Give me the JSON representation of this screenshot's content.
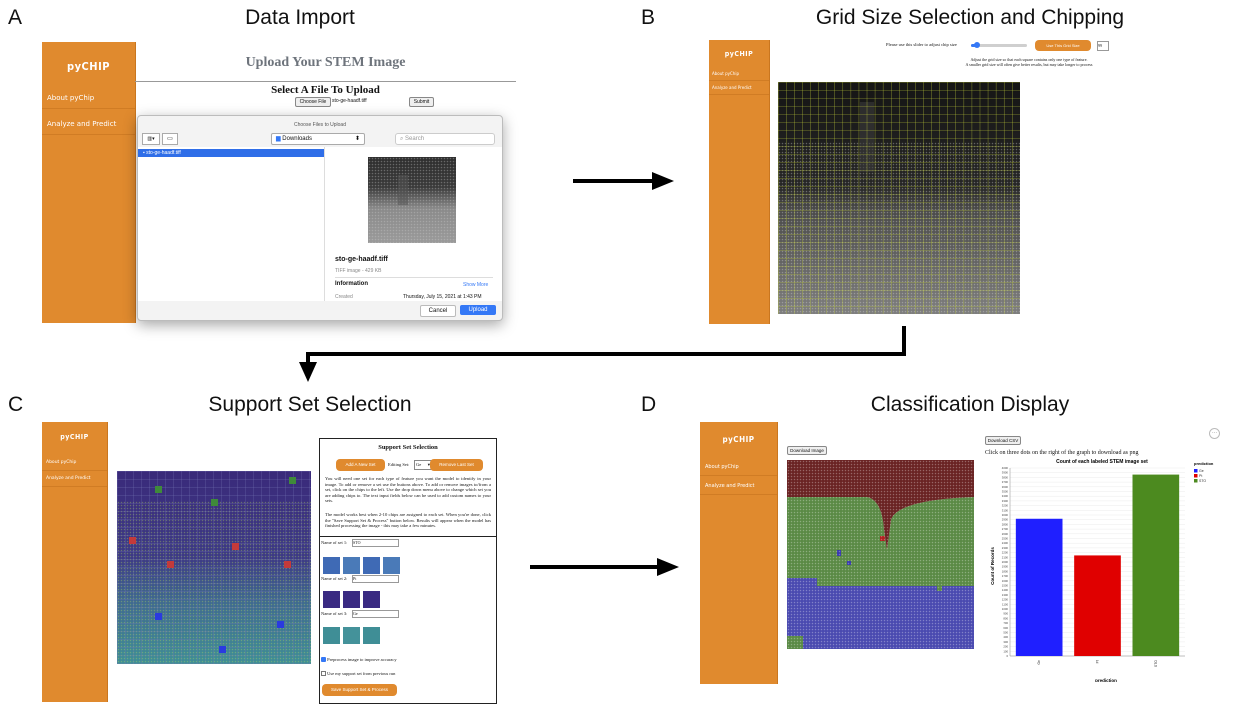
{
  "panels": {
    "a": {
      "letter": "A",
      "title": "Data Import"
    },
    "b": {
      "letter": "B",
      "title": "Grid Size Selection and Chipping"
    },
    "c": {
      "letter": "C",
      "title": "Support Set Selection"
    },
    "d": {
      "letter": "D",
      "title": "Classification Display"
    }
  },
  "app": {
    "brand": "pyCHIP",
    "nav_about": "About pyChip",
    "nav_analyze": "Analyze and Predict"
  },
  "upload": {
    "heading": "Upload Your STEM Image",
    "subheading": "Select A File To Upload",
    "choose_file": "Choose File",
    "file_name": "sto-ge-haadf.tiff",
    "submit": "Submit",
    "dialog_title": "Choose Files to Upload",
    "location": "Downloads",
    "search_placeholder": "Search",
    "selected_file": "sto-ge-haadf.tiff",
    "preview_name": "sto-ge-haadf.tiff",
    "preview_meta": "TIFF image - 429 KB",
    "information": "Information",
    "show_more": "Show More",
    "created_label": "Created",
    "created_value": "Thursday, July 15, 2021 at 1:43 PM",
    "cancel": "Cancel",
    "upload": "Upload"
  },
  "grid": {
    "slider_label": "Please use this slider to adjust chip size",
    "use_button": "Use This Grid Size",
    "size_value": "99",
    "hint_1": "Adjust the grid size so that each square contains only one type of feature.",
    "hint_2": "A smaller grid size will often give better results, but may take longer to process",
    "slider_fraction": 0.1
  },
  "support": {
    "title": "Support Set Selection",
    "add_button": "Add A New Set",
    "editing_label": "Editing Set:",
    "editing_value": "Ge",
    "remove_button": "Remove Last Set",
    "para_1": "You will need one set for each type of feature you want the model to identify in your image. To add or remove a set use the buttons above. To add or remove images to/from a set, click on the chips to the left. Use the drop down menu above to change which set you are adding chips to. The text input fields below can be used to add custom names to your sets.",
    "para_2": "The model works best when 2-10 chips are assigned to each set. When you're done, click the \"Save Support Set & Process\" button below. Results will appear when the model has finished processing the image - this may take a few minutes.",
    "set1_label": "Name of set 1:",
    "set1_value": "STO",
    "set2_label": "Name of set 2:",
    "set2_value": "Pt",
    "set3_label": "Name of set 3:",
    "set3_value": "Ge",
    "preprocess": "Preprocess image to improve accuracy",
    "preprocess_checked": true,
    "use_previous": "Use my support set from previous run",
    "use_previous_checked": false,
    "save_button": "Save Support Set & Process"
  },
  "classification": {
    "download_image": "Download Image",
    "download_csv": "Download CSV",
    "png_hint": "Click on three dots on the right of the graph to download as png"
  },
  "colors": {
    "orange": "#e08a2e",
    "ge": "#1f1fff",
    "pt": "#e00000",
    "sto": "#4c8a1f",
    "grid_line": "#c8d43a",
    "mac_blue": "#3478f6"
  },
  "chart_data": {
    "type": "bar",
    "title": "Count of each labeled STEM image set",
    "xlabel": "prediction",
    "ylabel": "Count of Records",
    "categories": [
      "Ge",
      "Pt",
      "STO"
    ],
    "values": [
      2920,
      2140,
      3860
    ],
    "ylim": [
      0,
      4000
    ],
    "yticks": [
      0,
      100,
      200,
      300,
      400,
      500,
      600,
      700,
      800,
      900,
      1000,
      1100,
      1200,
      1300,
      1400,
      1500,
      1600,
      1700,
      1800,
      1900,
      2000,
      2100,
      2200,
      2300,
      2400,
      2500,
      2600,
      2700,
      2800,
      2900,
      3000,
      3100,
      3200,
      3300,
      3400,
      3500,
      3600,
      3700,
      3800,
      3900,
      4000
    ],
    "legend_title": "prediction",
    "legend": [
      "Ge",
      "Pt",
      "STO"
    ],
    "legend_position": "right",
    "grid": true
  }
}
